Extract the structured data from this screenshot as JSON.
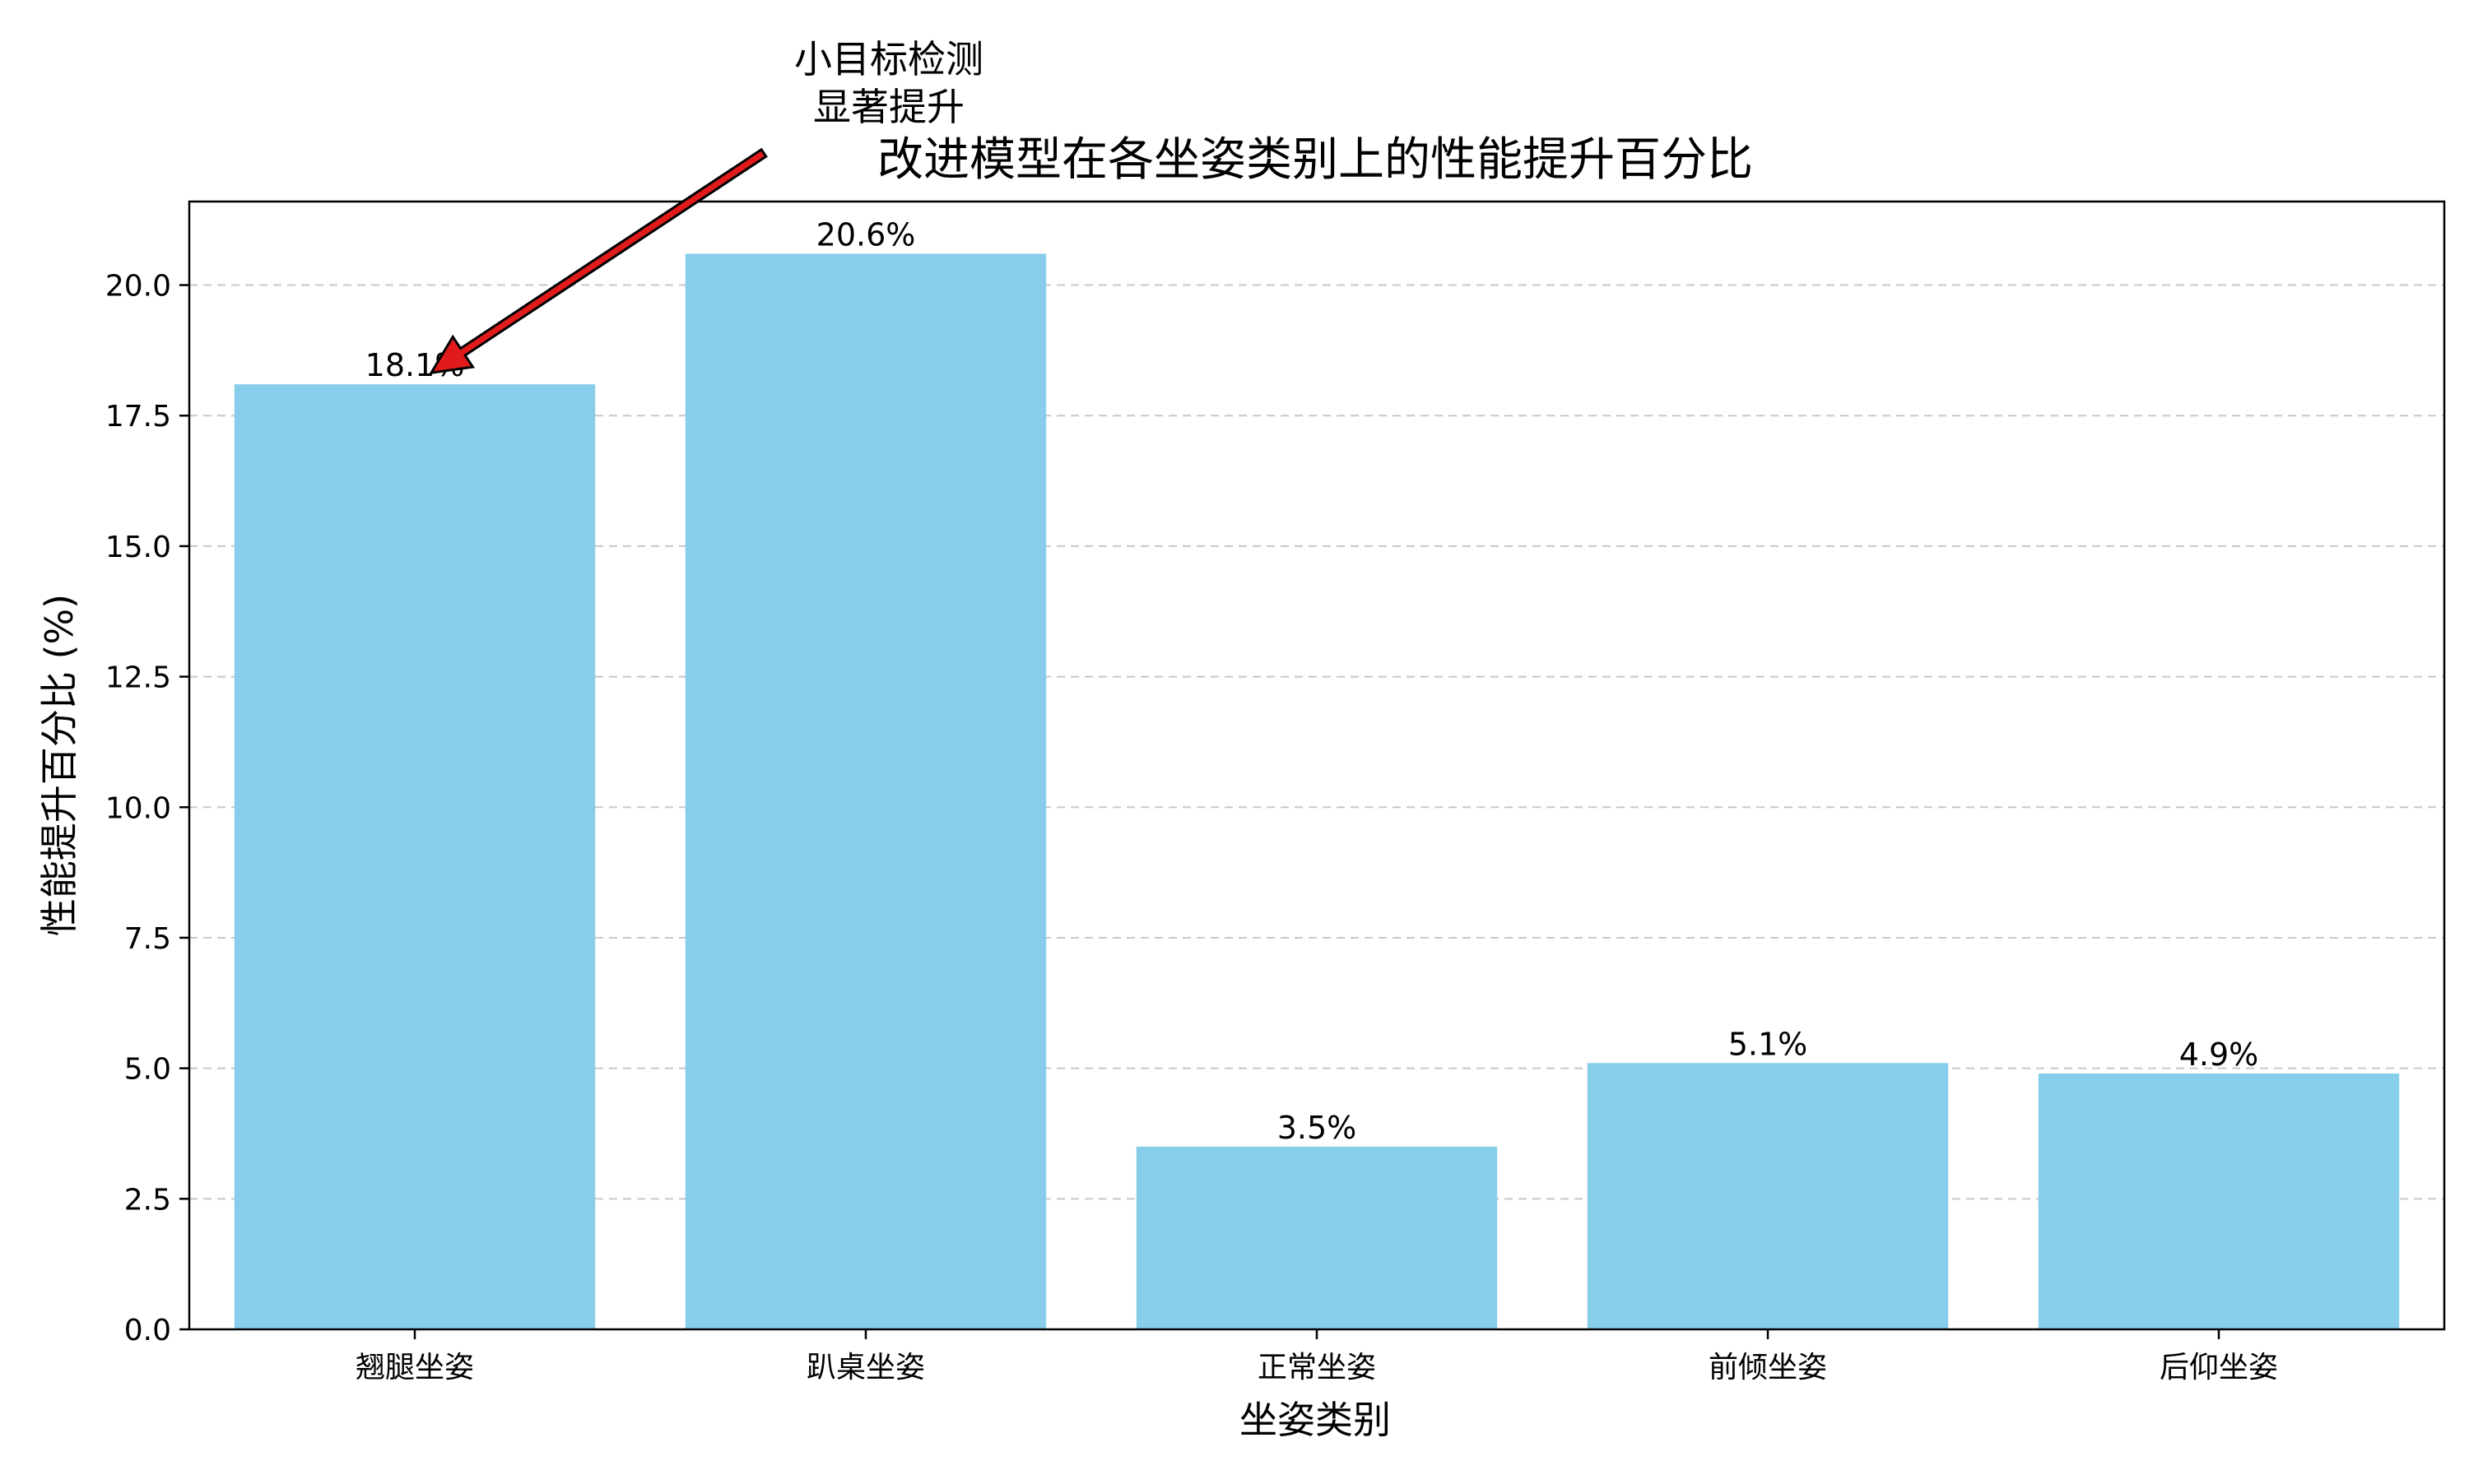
{
  "chart_data": {
    "type": "bar",
    "title": "改进模型在各坐姿类别上的性能提升百分比",
    "xlabel": "坐姿类别",
    "ylabel": "性能提升百分比 (%)",
    "categories": [
      "翘腿坐姿",
      "趴桌坐姿",
      "正常坐姿",
      "前倾坐姿",
      "后仰坐姿"
    ],
    "values": [
      18.1,
      20.6,
      3.5,
      5.1,
      4.9
    ],
    "value_labels": [
      "18.1%",
      "20.6%",
      "3.5%",
      "5.1%",
      "4.9%"
    ],
    "yticks": [
      "0.0",
      "2.5",
      "5.0",
      "7.5",
      "10.0",
      "12.5",
      "15.0",
      "17.5",
      "20.0"
    ],
    "ylim": [
      0,
      21.6
    ],
    "grid": "y-dashed",
    "annotation": {
      "lines": [
        "小目标检测",
        "显著提升"
      ],
      "target_category": "翘腿坐姿"
    },
    "colors": {
      "bar": "#87CEEB",
      "grid": "#c8c8c8",
      "arrow_fill": "#e11b1b",
      "arrow_edge": "#000000"
    }
  }
}
